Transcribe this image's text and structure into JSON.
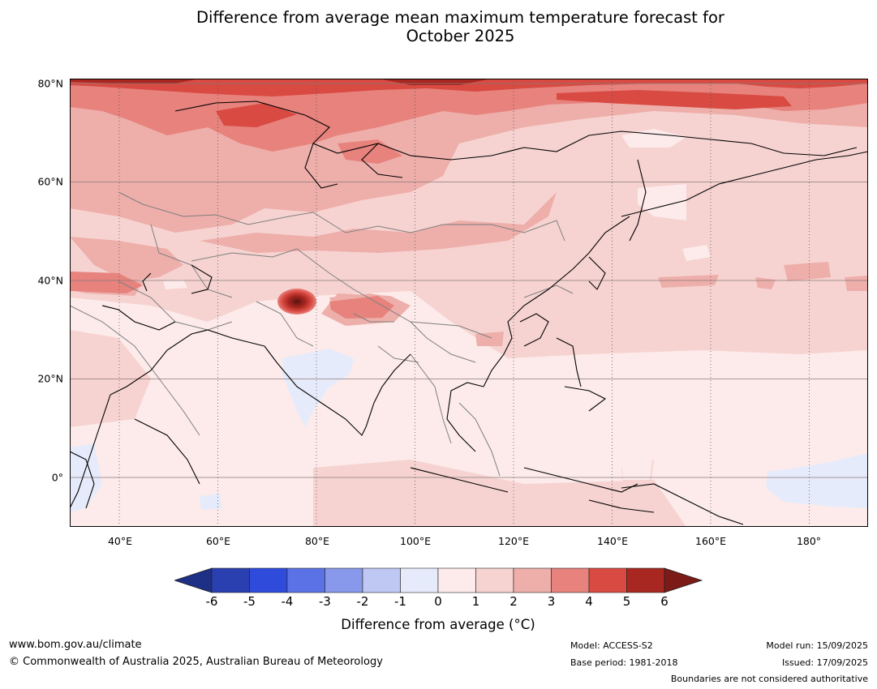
{
  "title_line1": "Difference from average mean maximum temperature forecast for",
  "title_line2": "October 2025",
  "lat_labels": [
    "80°N",
    "60°N",
    "40°N",
    "20°N",
    "0°"
  ],
  "lon_labels": [
    "40°E",
    "60°E",
    "80°E",
    "100°E",
    "120°E",
    "140°E",
    "160°E",
    "180°"
  ],
  "colorbar": {
    "ticks": [
      "-6",
      "-5",
      "-4",
      "-3",
      "-2",
      "-1",
      "0",
      "1",
      "2",
      "3",
      "4",
      "5",
      "6"
    ],
    "colors": [
      "#1e2f86",
      "#2a3fb0",
      "#2f4bdc",
      "#5b72e6",
      "#8898ea",
      "#bfc8f3",
      "#e6ebfb",
      "#fcebea",
      "#f6d3d1",
      "#eeaeaa",
      "#e7827d",
      "#d84a42",
      "#a82720",
      "#7b1a16"
    ],
    "label": "Difference from average (°C)"
  },
  "region": {
    "lon_min": 30,
    "lon_max": 192,
    "lat_min": -10,
    "lat_max": 81
  },
  "footer": {
    "website": "www.bom.gov.au/climate",
    "copyright": "© Commonwealth of Australia 2025, Australian Bureau of Meteorology",
    "model": "Model: ACCESS-S2",
    "base_period": "Base period: 1981-2018",
    "model_run": "Model run: 15/09/2025",
    "issued": "Issued: 17/09/2025",
    "disclaimer": "Boundaries are not considered authoritative"
  }
}
